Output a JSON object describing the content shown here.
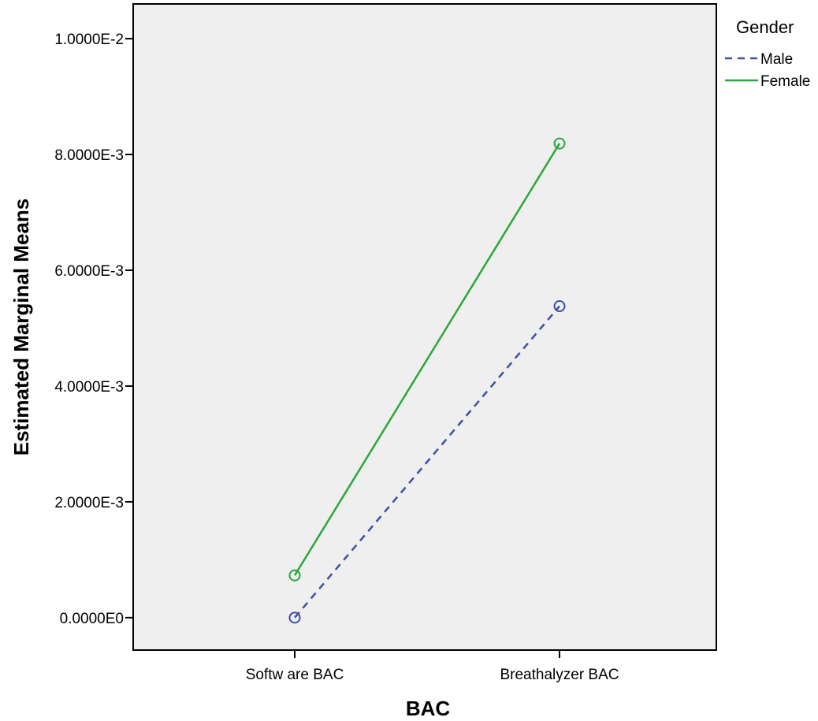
{
  "chart_data": {
    "type": "line",
    "title": "",
    "xlabel": "BAC",
    "ylabel": "Estimated Marginal Means",
    "categories": [
      "Softw are BAC",
      "Breathalyzer BAC"
    ],
    "yticks": [
      "0.0000E0",
      "2.0000E-3",
      "4.0000E-3",
      "6.0000E-3",
      "8.0000E-3",
      "1.0000E-2"
    ],
    "ylim": [
      -0.00056,
      0.0106
    ],
    "legend_title": "Gender",
    "legend_position": "top-right",
    "grid": false,
    "background": "#efefef",
    "series": [
      {
        "name": "Male",
        "values": [
          0.0,
          0.00538
        ],
        "color": "#3d4fa8",
        "dash": "dashed",
        "marker": "circle"
      },
      {
        "name": "Female",
        "values": [
          0.00073,
          0.00819
        ],
        "color": "#2aa83a",
        "dash": "solid",
        "marker": "circle"
      }
    ]
  }
}
